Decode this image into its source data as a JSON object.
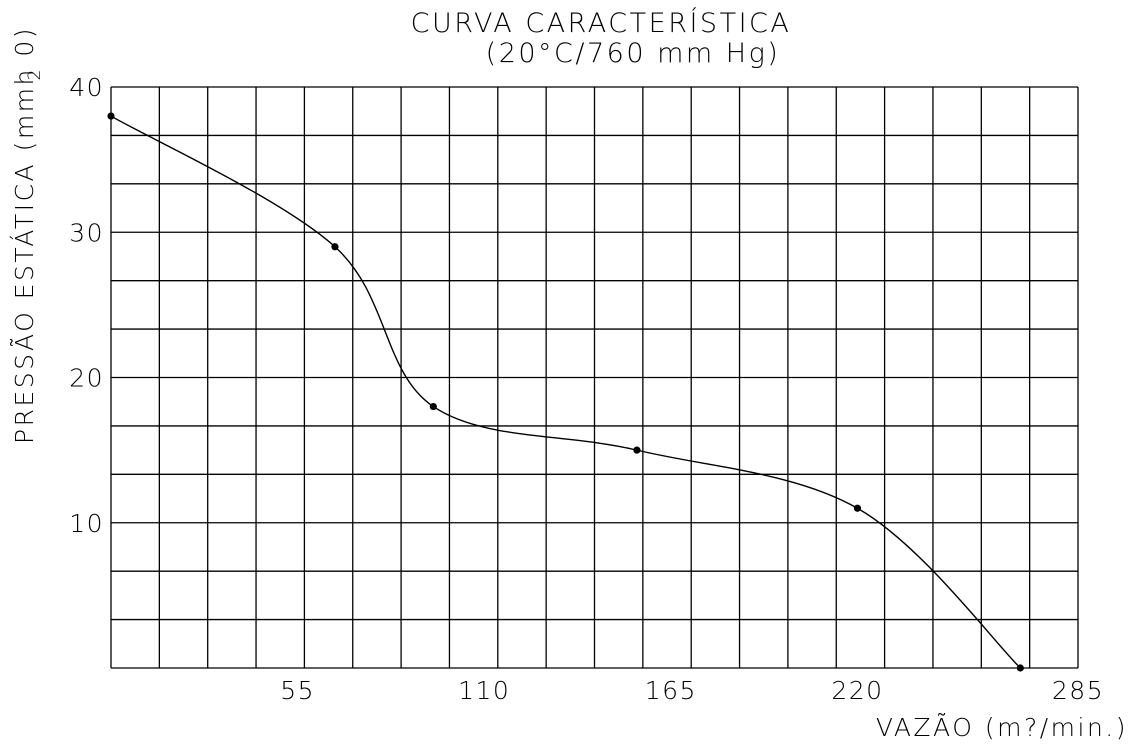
{
  "chart_data": {
    "type": "line",
    "title": "CURVA  CARACTERÍSTICA",
    "subtitle": "(20°C/760  mm  Hg)",
    "xlabel": "VAZÃO  (m?/min.)",
    "ylabel": "PRESSÃO  ESTÁTICA  (mmh  0)",
    "ylabel_subscript": "2",
    "xlim": [
      0,
      285
    ],
    "ylim": [
      0,
      40
    ],
    "x_tick_values": [
      55,
      110,
      165,
      220,
      285
    ],
    "x_tick_labels": [
      "55",
      "110",
      "165",
      "220",
      "285"
    ],
    "y_tick_values": [
      10,
      20,
      30,
      40
    ],
    "y_tick_labels": [
      "10",
      "20",
      "30",
      "40"
    ],
    "grid": true,
    "x_grid_divisions": 20,
    "y_grid_divisions": 12,
    "series": [
      {
        "x": [
          0,
          66,
          95,
          155,
          220,
          268
        ],
        "y": [
          38,
          29,
          18,
          15,
          11,
          0
        ]
      }
    ]
  }
}
